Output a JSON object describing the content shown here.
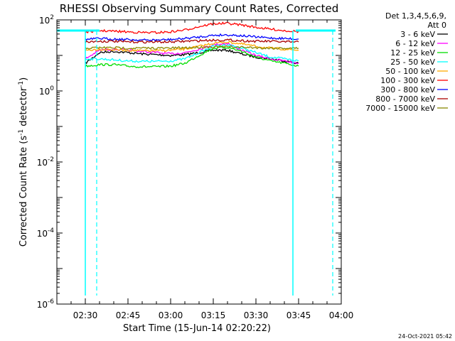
{
  "chart_data": {
    "type": "line",
    "title": "RHESSI Observing Summary Count Rates, Corrected",
    "xlabel": "Start Time (15-Jun-14 02:20:22)",
    "ylabel_main": "Corrected Count Rate (s",
    "ylabel_exp1": "-1",
    "ylabel_mid": " detector",
    "ylabel_exp2": "-1",
    "ylabel_end": ")",
    "yscale": "log",
    "xlim": [
      "02:20",
      "04:00"
    ],
    "ylim": [
      1e-06,
      100
    ],
    "x_ticks": [
      "02:30",
      "02:45",
      "03:00",
      "03:15",
      "03:30",
      "03:45",
      "04:00"
    ],
    "y_ticks": [
      {
        "value": 100,
        "base": "10",
        "exp": "2"
      },
      {
        "value": 1,
        "base": "10",
        "exp": "0"
      },
      {
        "value": 0.01,
        "base": "10",
        "exp": "-2"
      },
      {
        "value": 0.0001,
        "base": "10",
        "exp": "-4"
      },
      {
        "value": 1e-06,
        "base": "10",
        "exp": "-6"
      }
    ],
    "legend": {
      "header1": "Det 1,3,4,5,6,9,",
      "header2": "Att 0",
      "placement": "right"
    },
    "series": [
      {
        "name": "3 - 6 keV",
        "color": "#000000",
        "x": [
          "02:30",
          "02:35",
          "02:40",
          "02:45",
          "02:50",
          "02:55",
          "03:00",
          "03:05",
          "03:10",
          "03:15",
          "03:20",
          "03:25",
          "03:30",
          "03:35",
          "03:40",
          "03:45"
        ],
        "y": [
          6,
          12,
          13,
          12,
          11,
          10.5,
          10,
          10.5,
          12,
          14,
          14,
          11,
          9,
          8,
          7,
          6
        ]
      },
      {
        "name": "6 - 12 keV",
        "color": "#ff00ff",
        "x": [
          "02:30",
          "02:35",
          "02:40",
          "02:45",
          "02:50",
          "02:55",
          "03:00",
          "03:05",
          "03:10",
          "03:15",
          "03:20",
          "03:25",
          "03:30",
          "03:35",
          "03:40",
          "03:45"
        ],
        "y": [
          8,
          14,
          15,
          14,
          13,
          12,
          11,
          12,
          15,
          20,
          22,
          14,
          10,
          8,
          7,
          6
        ]
      },
      {
        "name": "12 - 25 keV",
        "color": "#00dd00",
        "x": [
          "02:30",
          "02:35",
          "02:40",
          "02:45",
          "02:50",
          "02:55",
          "03:00",
          "03:05",
          "03:10",
          "03:15",
          "03:20",
          "03:25",
          "03:30",
          "03:35",
          "03:40",
          "03:45"
        ],
        "y": [
          5,
          5.5,
          5.5,
          5,
          4.8,
          4.8,
          5,
          6,
          10,
          16,
          17,
          13,
          9,
          7,
          6,
          5
        ]
      },
      {
        "name": "25 - 50 keV",
        "color": "#00ffff",
        "x": [
          "02:30",
          "02:35",
          "02:40",
          "02:45",
          "02:50",
          "02:55",
          "03:00",
          "03:05",
          "03:10",
          "03:15",
          "03:20",
          "03:25",
          "03:30",
          "03:35",
          "03:40",
          "03:45"
        ],
        "y": [
          8,
          8,
          7.5,
          7,
          6.8,
          6.8,
          7,
          8,
          12,
          18,
          20,
          16,
          12,
          9,
          8,
          7
        ]
      },
      {
        "name": "50 - 100 keV",
        "color": "#ffaa00",
        "x": [
          "02:30",
          "02:35",
          "02:40",
          "02:45",
          "02:50",
          "02:55",
          "03:00",
          "03:05",
          "03:10",
          "03:15",
          "03:20",
          "03:25",
          "03:30",
          "03:35",
          "03:40",
          "03:45"
        ],
        "y": [
          14,
          15,
          14.5,
          14,
          13.5,
          13.5,
          14,
          15,
          18,
          22,
          24,
          21,
          18,
          16,
          15,
          14
        ]
      },
      {
        "name": "100 - 300 keV",
        "color": "#ff0000",
        "x": [
          "02:30",
          "02:35",
          "02:40",
          "02:45",
          "02:50",
          "02:55",
          "03:00",
          "03:05",
          "03:10",
          "03:15",
          "03:20",
          "03:25",
          "03:30",
          "03:35",
          "03:40",
          "03:45"
        ],
        "y": [
          45,
          50,
          48,
          46,
          44,
          44,
          46,
          52,
          65,
          78,
          80,
          72,
          62,
          55,
          50,
          47
        ]
      },
      {
        "name": "300 - 800 keV",
        "color": "#0000ff",
        "x": [
          "02:30",
          "02:35",
          "02:40",
          "02:45",
          "02:50",
          "02:55",
          "03:00",
          "03:05",
          "03:10",
          "03:15",
          "03:20",
          "03:25",
          "03:30",
          "03:35",
          "03:40",
          "03:45"
        ],
        "y": [
          28,
          30,
          29,
          28,
          27,
          27,
          28,
          30,
          33,
          37,
          38,
          36,
          33,
          31,
          30,
          29
        ]
      },
      {
        "name": "800 - 7000 keV",
        "color": "#aa0000",
        "x": [
          "02:30",
          "02:35",
          "02:40",
          "02:45",
          "02:50",
          "02:55",
          "03:00",
          "03:05",
          "03:10",
          "03:15",
          "03:20",
          "03:25",
          "03:30",
          "03:35",
          "03:40",
          "03:45"
        ],
        "y": [
          24,
          25,
          25,
          24,
          24,
          24,
          24,
          25,
          26,
          27,
          27,
          26,
          25,
          25,
          24,
          24
        ]
      },
      {
        "name": "7000 - 15000 keV",
        "color": "#888800",
        "x": [
          "02:30",
          "02:35",
          "02:40",
          "02:45",
          "02:50",
          "02:55",
          "03:00",
          "03:05",
          "03:10",
          "03:15",
          "03:20",
          "03:25",
          "03:30",
          "03:35",
          "03:40",
          "03:45"
        ],
        "y": [
          16,
          16.5,
          16.5,
          16,
          16,
          16,
          16,
          16.5,
          17,
          17.5,
          17.5,
          17,
          16.5,
          16,
          16,
          16
        ]
      }
    ],
    "overlays": {
      "color": "#00ffff",
      "level_y": 50,
      "level_segments": [
        [
          "02:20",
          "02:35"
        ],
        [
          "03:44",
          "03:58"
        ]
      ],
      "solid_vlines": [
        "02:30",
        "03:43"
      ],
      "dashed_vlines": [
        "02:34",
        "03:57"
      ]
    }
  },
  "footer": {
    "timestamp": "24-Oct-2021 05:42"
  }
}
